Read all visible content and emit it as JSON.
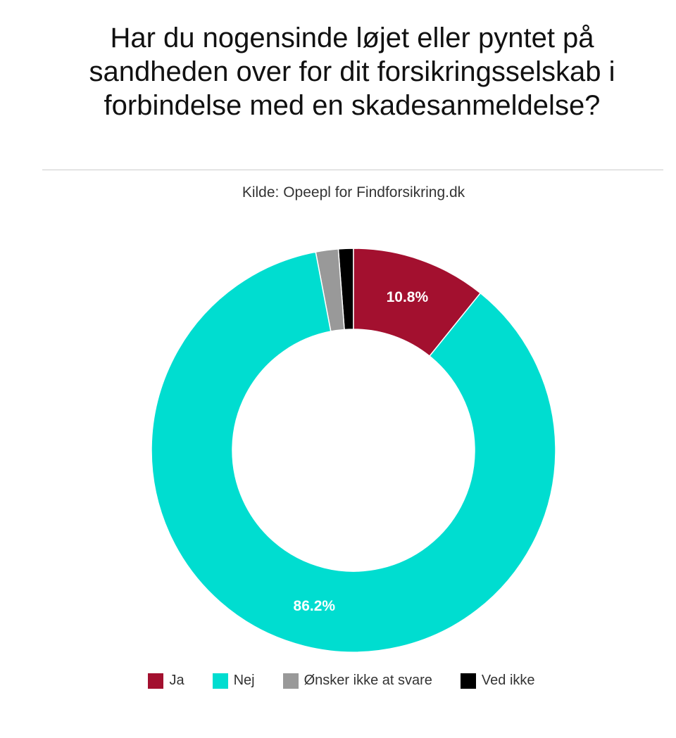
{
  "chart_data": {
    "type": "donut",
    "title": "Har du nogensinde løjet eller pyntet på sandheden over for dit forsikringsselskab i forbindelse med en skadesanmeldelse?",
    "subtitle": "Kilde: Opeepl for Findforsikring.dk",
    "categories": [
      "Ja",
      "Nej",
      "Ønsker ikke at svare",
      "Ved ikke"
    ],
    "values": [
      10.8,
      86.2,
      1.8,
      1.2
    ],
    "value_labels": [
      "10.8%",
      "86.2%",
      null,
      null
    ],
    "colors": [
      "#a3102f",
      "#00ddd0",
      "#999999",
      "#000000"
    ]
  }
}
